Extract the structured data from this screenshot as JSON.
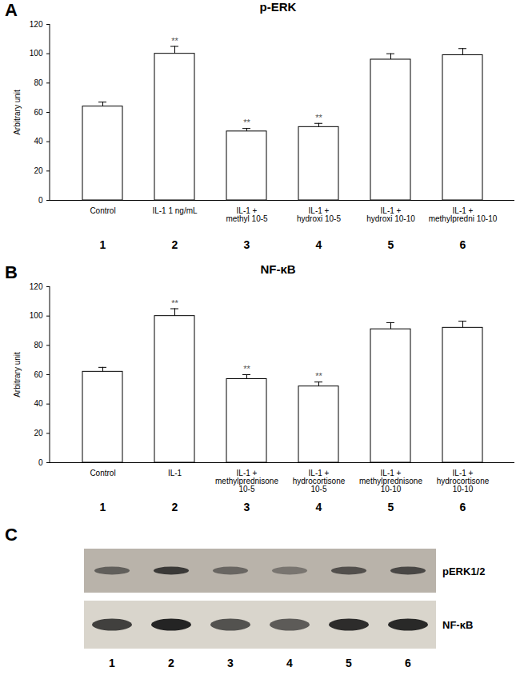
{
  "chart_data": [
    {
      "type": "bar",
      "panel": "A",
      "title": "p-ERK",
      "ylabel": "Arbitrary unit",
      "categories": [
        "Control",
        "IL-1 1 ng/mL",
        "IL-1 +\nmethyl 10-5",
        "IL-1 +\nhydroxi 10-5",
        "IL-1 +\nhydroxi 10-10",
        "IL-1 +\nmethylpredni 10-10"
      ],
      "values": [
        64,
        100,
        47,
        50,
        96,
        99
      ],
      "errors": [
        3,
        5,
        2,
        2.5,
        4,
        4.5
      ],
      "significance": [
        null,
        "**",
        "**",
        "**",
        null,
        null
      ],
      "lane_numbers": [
        1,
        2,
        3,
        4,
        5,
        6
      ],
      "color": "#ffffff",
      "grid": false,
      "ylim": [
        0,
        120
      ],
      "yticks": [
        0,
        20,
        40,
        60,
        80,
        100,
        120
      ]
    },
    {
      "type": "bar",
      "panel": "B",
      "title": "NF-κB",
      "ylabel": "Arbitrary unit",
      "categories": [
        "Control",
        "IL-1",
        "IL-1 +\nmethylprednisone\n10-5",
        "IL-1 +\nhydrocortisone\n10-5",
        "IL-1 +\nmethylprednisone\n10-10",
        "IL-1 +\nhydrocortisone\n10-10"
      ],
      "values": [
        62,
        100,
        57,
        52,
        91,
        92
      ],
      "errors": [
        3,
        5,
        3,
        3,
        4.5,
        4.5
      ],
      "significance": [
        null,
        "**",
        "**",
        "**",
        null,
        null
      ],
      "lane_numbers": [
        1,
        2,
        3,
        4,
        5,
        6
      ],
      "color": "#ffffff",
      "grid": false,
      "ylim": [
        0,
        120
      ],
      "yticks": [
        0,
        20,
        40,
        60,
        80,
        100,
        120
      ]
    }
  ],
  "blot": {
    "panel": "C",
    "rows": [
      "pERK1/2",
      "NF-κB"
    ],
    "lanes": [
      1,
      2,
      3,
      4,
      5,
      6
    ]
  }
}
